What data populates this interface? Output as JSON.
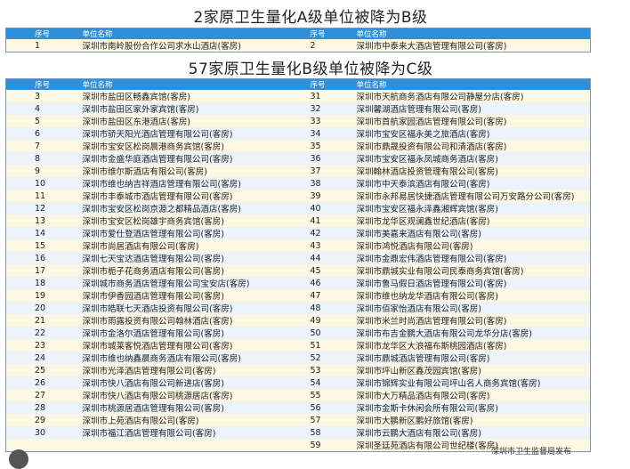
{
  "title_a": "2家原卫生量化A级单位被降为B级",
  "title_b": "57家原卫生量化B级单位被降为C级",
  "headers": {
    "seq": "序号",
    "name": "单位名称"
  },
  "table_a": [
    [
      [
        "1",
        "深圳市南岭股份合作公司求水山酒店(客房)"
      ],
      [
        "2",
        "深圳市中泰来大酒店管理有限公司(客房)"
      ]
    ]
  ],
  "table_b": [
    [
      [
        "3",
        "深圳市盐田区畅鑫宾馆(客房)"
      ],
      [
        "31",
        "深圳市天航商务酒店有限公司静屋分店(客房)"
      ]
    ],
    [
      [
        "4",
        "深圳市盐田区家外家宾馆(客房)"
      ],
      [
        "32",
        "深圳馨湖酒店管理有限公司(客房)"
      ]
    ],
    [
      [
        "5",
        "深圳市盐田区东港酒店(客房)"
      ],
      [
        "33",
        "深圳市首航家园酒店管理有限公司(客房)"
      ]
    ],
    [
      [
        "6",
        "深圳市骄天阳光酒店管理有限公司(客房)"
      ],
      [
        "34",
        "深圳市宝安区福永美之旅酒店(客房)"
      ]
    ],
    [
      [
        "7",
        "深圳市宝安区松岗晨港商务宾馆(客房)"
      ],
      [
        "35",
        "深圳市鼎晟投资有限公司和清酒店(客房)"
      ]
    ],
    [
      [
        "8",
        "深圳市金盛华庭酒店管理有限公司(客房)"
      ],
      [
        "36",
        "深圳市宝安区福永凤城商务酒店(客房)"
      ]
    ],
    [
      [
        "9",
        "深圳市维尔斯酒店有限公司(客房)"
      ],
      [
        "37",
        "深圳翰林酒店投资管理有限公司(客房)"
      ]
    ],
    [
      [
        "10",
        "深圳市维也纳吉祥酒店管理有限公司(客房)"
      ],
      [
        "38",
        "深圳市中天泰滨酒店有限公司(客房)"
      ]
    ],
    [
      [
        "11",
        "深圳市丰泰城市酒店管理有限公司(客房)"
      ],
      [
        "39",
        "深圳市永邦易居快捷酒店管理有限公司万安路分公司(客房)"
      ]
    ],
    [
      [
        "12",
        "深圳市宝安区松岗京源之都精品酒店(客房)"
      ],
      [
        "40",
        "深圳市宝安区福永泽鑫湘辉宾馆(客房)"
      ]
    ],
    [
      [
        "13",
        "深圳市宝安区松岗雄宇商务宾馆(客房)"
      ],
      [
        "41",
        "深圳市龙华区观澜鑫世纪酒店(客房)"
      ]
    ],
    [
      [
        "14",
        "深圳市爱仕登酒店管理有限公司(客房)"
      ],
      [
        "42",
        "深圳市美嘉来酒店有限公司(客房)"
      ]
    ],
    [
      [
        "15",
        "深圳市尚居酒店有限公司(客房)"
      ],
      [
        "43",
        "深圳市鸿悦酒店有限公司(客房)"
      ]
    ],
    [
      [
        "16",
        "深圳七天宝达酒店管理有限公司(客房)"
      ],
      [
        "44",
        "深圳市金鼎宏伟酒店管理有限公司(客房)"
      ]
    ],
    [
      [
        "17",
        "深圳市栀子花商务酒店有限公司(客房)"
      ],
      [
        "45",
        "深圳市鼎城实业有限公司民泰商务宾馆(客房)"
      ]
    ],
    [
      [
        "18",
        "深圳城市商务酒店管理有限公司宝安店(客房)"
      ],
      [
        "46",
        "深圳市鲁马假日酒店管理有限公司(客房)"
      ]
    ],
    [
      [
        "19",
        "深圳市伊香园酒店管理有限公司(客房)"
      ],
      [
        "47",
        "深圳市维也纳龙华酒店有限公司(客房)"
      ]
    ],
    [
      [
        "20",
        "深圳市皓联七天酒店投资有限公司(客房)"
      ],
      [
        "48",
        "深圳市佰家怡酒店有限公司(客房)"
      ]
    ],
    [
      [
        "21",
        "深圳市雨露投资有限公司翰林酒店(客房)"
      ],
      [
        "49",
        "深圳市米兰时尚酒店管理有限公司(客房)"
      ]
    ],
    [
      [
        "22",
        "深圳市金洛尔酒店管理有限公司(客房)"
      ],
      [
        "50",
        "深圳市布吉金鹏大酒店有限公司龙华分店(客房)"
      ]
    ],
    [
      [
        "23",
        "深圳市城莱客悦酒店管理有限公司(客房)"
      ],
      [
        "51",
        "深圳市龙华区大浪福布斯桃园酒店(客房)"
      ]
    ],
    [
      [
        "24",
        "深圳市维也纳鑫晨商务酒店有限公司(客房)"
      ],
      [
        "52",
        "深圳市鼎城酒店管理有限公司(客房)"
      ]
    ],
    [
      [
        "25",
        "深圳市光泽酒店管理有限公司(客房)"
      ],
      [
        "53",
        "深圳市坪山新区鑫茂园宾馆(客房)"
      ]
    ],
    [
      [
        "26",
        "深圳市快八酒店有限公司新进店(客房)"
      ],
      [
        "54",
        "深圳市锦辉实业有限公司坪山名人商务宾馆(客房)"
      ]
    ],
    [
      [
        "27",
        "深圳市快八酒店有限公司桃源居店(客房)"
      ],
      [
        "55",
        "深圳市大万精品酒店有限公司(客房)"
      ]
    ],
    [
      [
        "28",
        "深圳市桃源居酒店管理有限公司(客房)"
      ],
      [
        "56",
        "深圳市金斯卡休闲会所有限公司(客房)"
      ]
    ],
    [
      [
        "29",
        "深圳市上苑酒店有限公司(客房)"
      ],
      [
        "57",
        "深圳市大鹏新区鹏好旅馆(客房)"
      ]
    ],
    [
      [
        "30",
        "深圳市福江酒店管理有限公司(客房)"
      ],
      [
        "58",
        "深圳市云鹏大酒店有限公司(客房)"
      ]
    ],
    [
      [
        "",
        ""
      ],
      [
        "59",
        "深圳圣廷苑酒店有限公司世纪楼(客房)"
      ]
    ]
  ],
  "footer": "深圳市卫生监督局发布",
  "colors": {
    "header": "#2f8fd8",
    "row_odd": "#fdf7e3",
    "row_even": "#edf3fb"
  }
}
